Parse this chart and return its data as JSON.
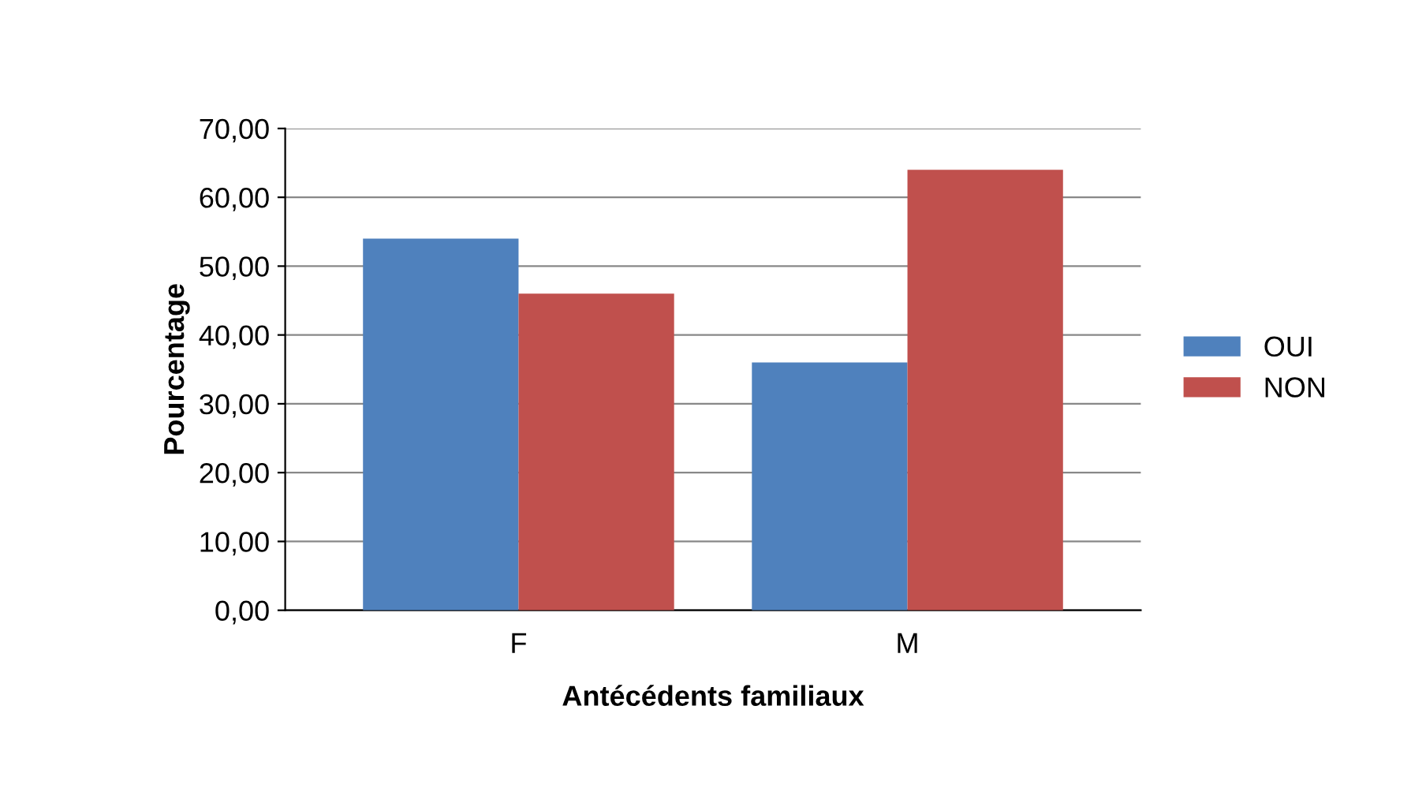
{
  "chart_data": {
    "type": "bar",
    "xlabel": "Antécédents familiaux",
    "ylabel": "Pourcentage",
    "categories": [
      "F",
      "M"
    ],
    "series": [
      {
        "name": "OUI",
        "color": "#4f81bd",
        "values": [
          54,
          36
        ]
      },
      {
        "name": "NON",
        "color": "#c0504d",
        "values": [
          46,
          64
        ]
      }
    ],
    "ylim": [
      0,
      70
    ],
    "yticks": [
      {
        "value": 0,
        "label": "0,00"
      },
      {
        "value": 10,
        "label": "10,00"
      },
      {
        "value": 20,
        "label": "20,00"
      },
      {
        "value": 30,
        "label": "30,00"
      },
      {
        "value": 40,
        "label": "40,00"
      },
      {
        "value": 50,
        "label": "50,00"
      },
      {
        "value": 60,
        "label": "60,00"
      },
      {
        "value": 70,
        "label": "70,00"
      }
    ],
    "grid": "y",
    "legend": "right"
  }
}
